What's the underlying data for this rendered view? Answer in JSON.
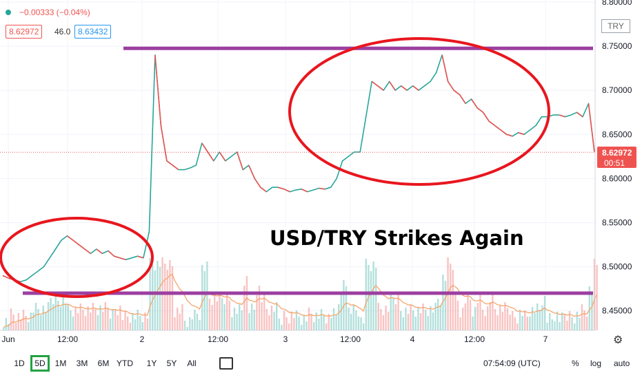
{
  "header": {
    "dot_color": "#26a69a",
    "change_text": "−0.00333 (−0.04%)",
    "bid": "8.62972",
    "spread": "46.0",
    "ask": "8.63432"
  },
  "currency_badge": "TRY",
  "overlay_title": "USD/TRY Strikes Again",
  "price_tag": {
    "price": "8.62972",
    "countdown": "00:51"
  },
  "timeframes": [
    {
      "label": "1D",
      "selected": false
    },
    {
      "label": "5D",
      "selected": true
    },
    {
      "label": "1M",
      "selected": false
    },
    {
      "label": "3M",
      "selected": false
    },
    {
      "label": "6M",
      "selected": false
    },
    {
      "label": "YTD",
      "selected": false
    },
    {
      "label": "1Y",
      "selected": false
    },
    {
      "label": "5Y",
      "selected": false
    },
    {
      "label": "All",
      "selected": false
    }
  ],
  "footer": {
    "time": "07:54:09 (UTC)",
    "percent": "%",
    "log": "log",
    "auto": "auto"
  },
  "chart_data": {
    "type": "line",
    "ylim": [
      8.42,
      8.8
    ],
    "y_ticks": [
      "8.80000",
      "8.75000",
      "8.70000",
      "8.65000",
      "8.60000",
      "8.55000",
      "8.50000",
      "8.45000"
    ],
    "x_ticks": [
      "Jun",
      "12:00",
      "2",
      "12:00",
      "3",
      "12:00",
      "4",
      "12:00",
      "7"
    ],
    "current_price": 8.62972,
    "resistance": 8.7475,
    "support": 8.47,
    "series_color": "#26a69a",
    "down_color": "#ef5350",
    "ema_color": "#f5a66b",
    "series": [
      {
        "values": [
          8.49,
          8.487,
          8.485,
          8.483,
          8.485,
          8.49,
          8.495,
          8.5,
          8.51,
          8.52,
          8.53,
          8.535,
          8.53,
          8.525,
          8.52,
          8.515,
          8.52,
          8.515,
          8.518,
          8.512,
          8.51,
          8.508,
          8.51,
          8.512,
          8.51,
          8.54,
          8.74,
          8.66,
          8.62,
          8.615,
          8.61,
          8.61,
          8.612,
          8.615,
          8.64,
          8.63,
          8.62,
          8.63,
          8.62,
          8.625,
          8.63,
          8.61,
          8.615,
          8.6,
          8.59,
          8.585,
          8.59,
          8.59,
          8.588,
          8.585,
          8.587,
          8.588,
          8.585,
          8.587,
          8.589,
          8.588,
          8.59,
          8.6,
          8.62,
          8.625,
          8.63,
          8.63,
          8.67,
          8.71,
          8.705,
          8.7,
          8.71,
          8.7,
          8.705,
          8.7,
          8.705,
          8.7,
          8.705,
          8.71,
          8.72,
          8.74,
          8.71,
          8.7,
          8.695,
          8.685,
          8.69,
          8.68,
          8.675,
          8.665,
          8.66,
          8.655,
          8.65,
          8.648,
          8.652,
          8.65,
          8.655,
          8.66,
          8.67,
          8.67,
          8.672,
          8.672,
          8.67,
          8.672,
          8.675,
          8.67,
          8.685,
          8.63
        ]
      }
    ]
  }
}
